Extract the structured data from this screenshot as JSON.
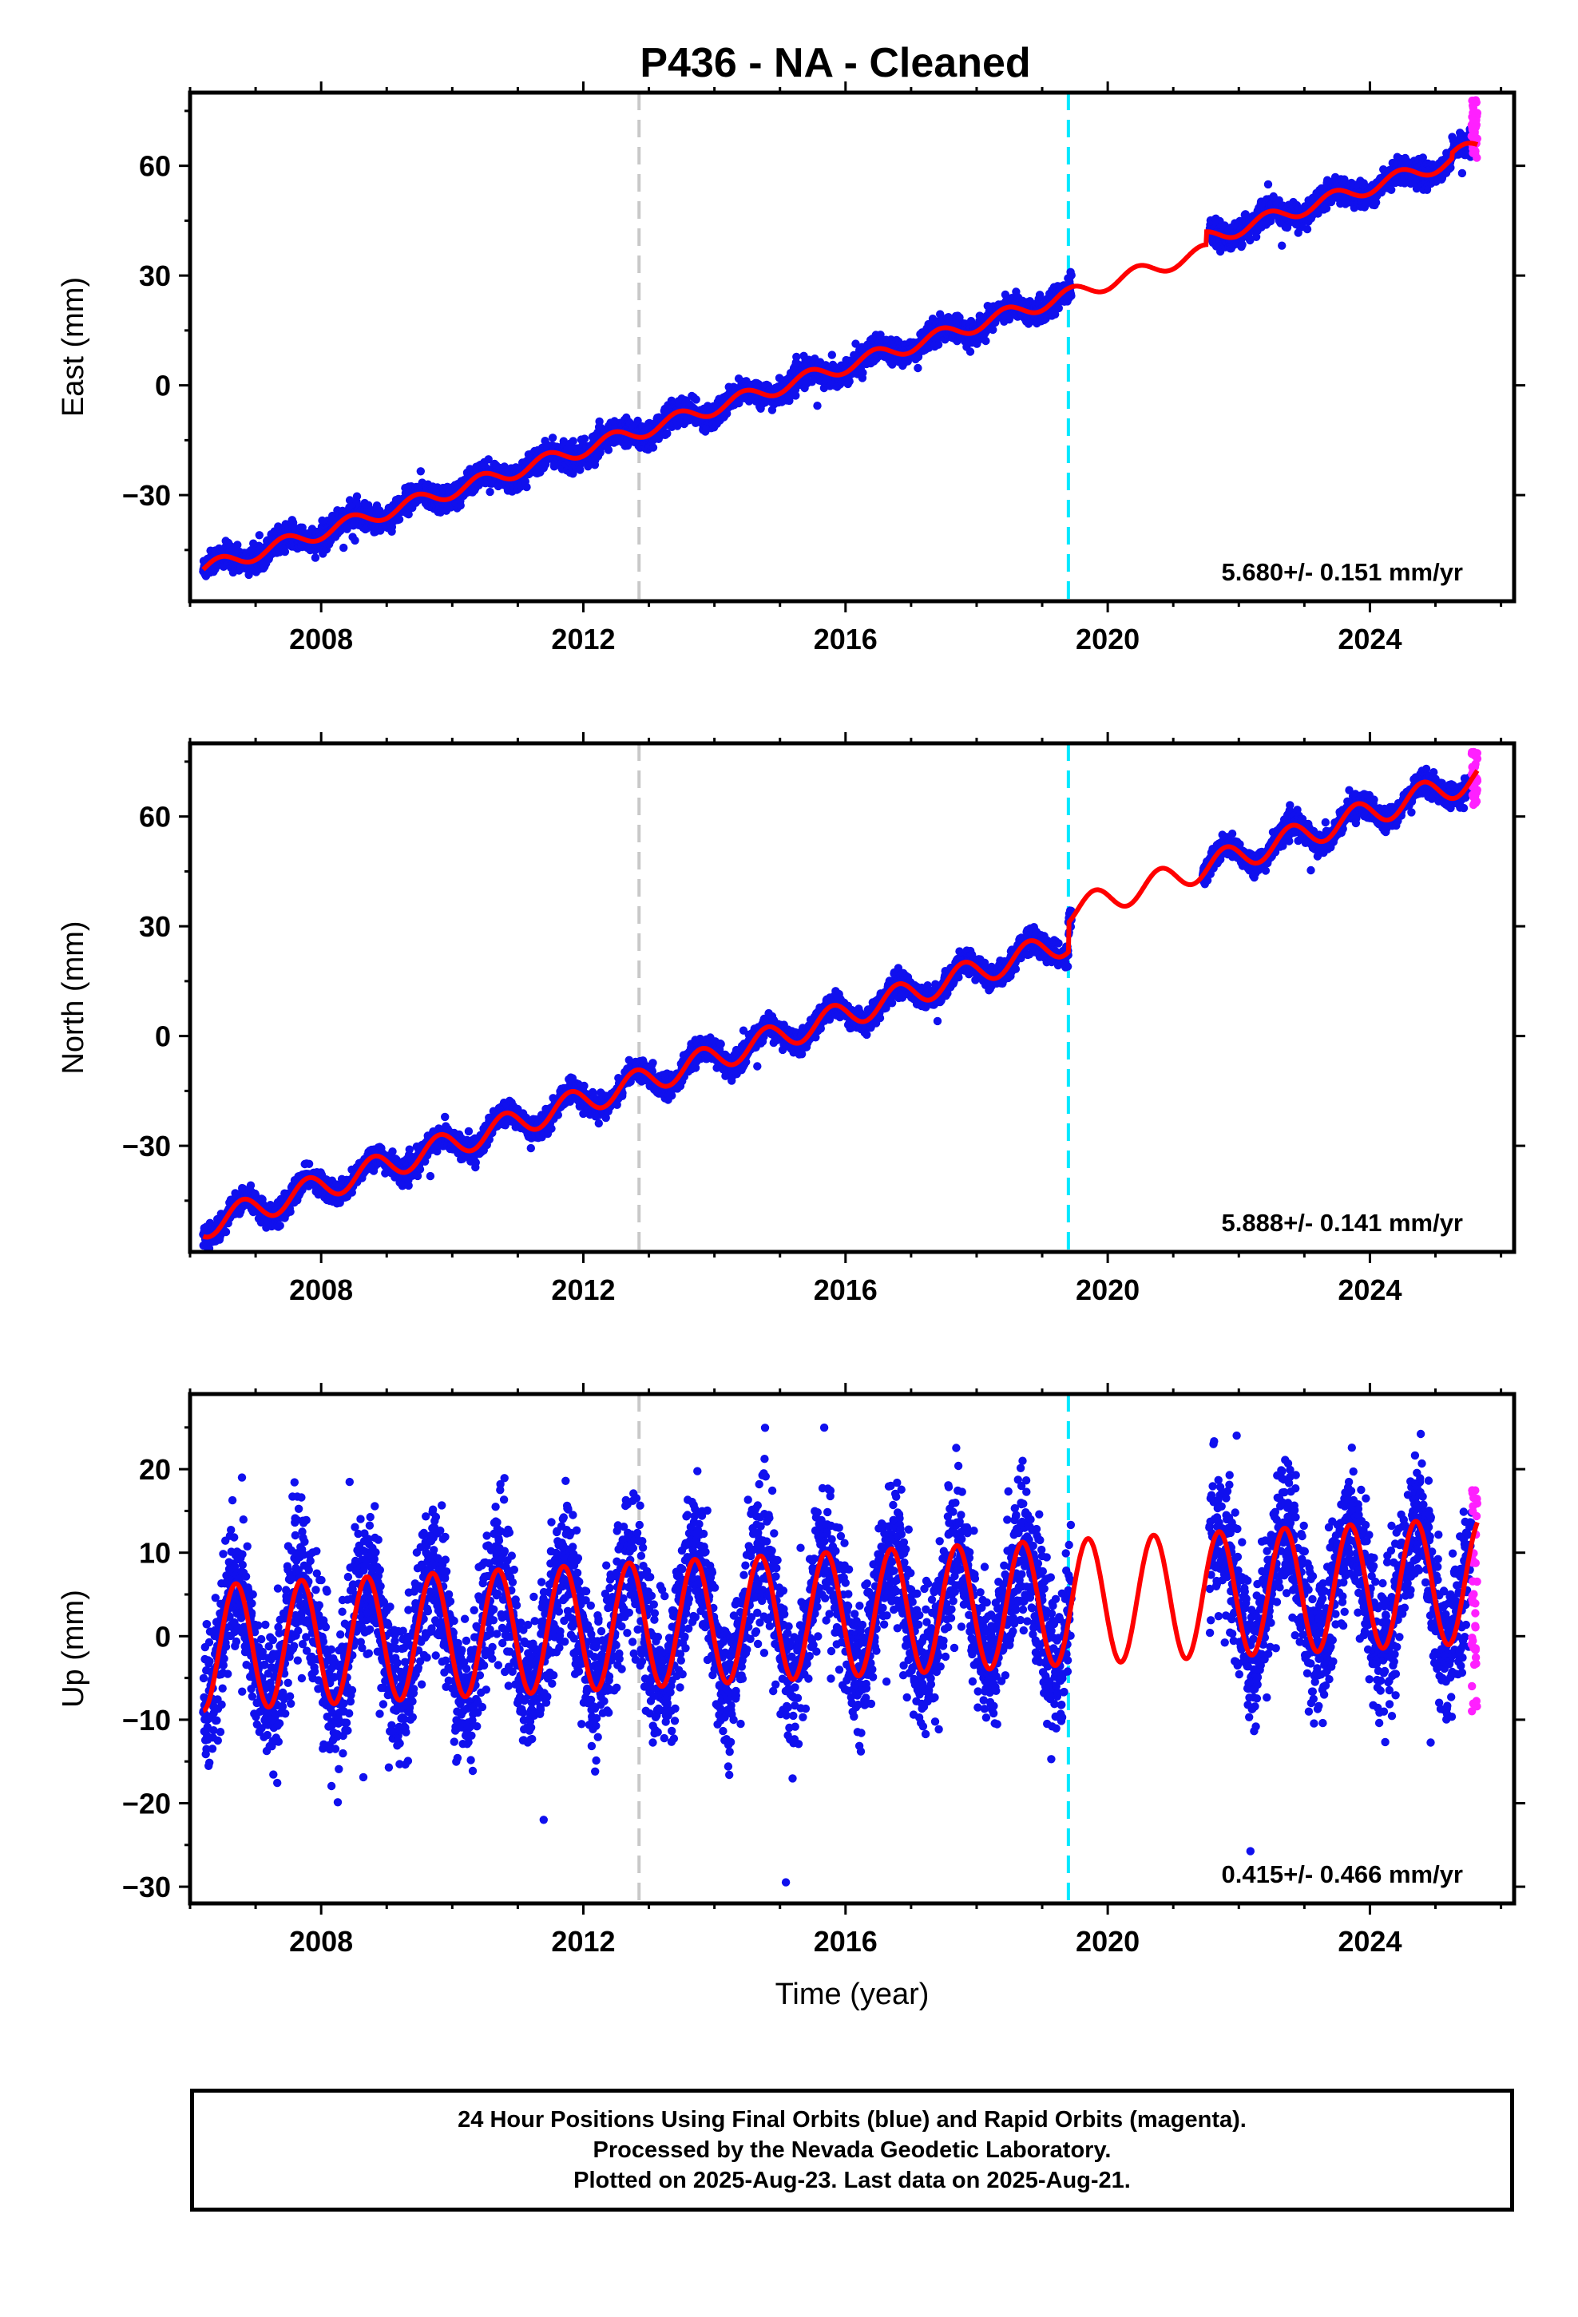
{
  "page": {
    "title": "P436  - NA - Cleaned"
  },
  "caption": {
    "line1": "24 Hour Positions Using Final Orbits (blue) and Rapid Orbits (magenta).",
    "line2": "Processed by the Nevada Geodetic Laboratory.",
    "line3": "Plotted on 2025-Aug-23. Last data on 2025-Aug-21."
  },
  "colors": {
    "final_orbits": "#1010ee",
    "rapid_orbits": "#ff20ff",
    "model_fit": "#ff0000",
    "marker_gray": "#c8c8c8",
    "marker_cyan": "#00e8ff"
  },
  "chart_data": [
    {
      "type": "scatter",
      "ylabel": "East (mm)",
      "xlabel": "",
      "rate_text": "5.680+/- 0.151 mm/yr",
      "xlim": [
        2006.0,
        2026.2
      ],
      "ylim": [
        -59,
        80
      ],
      "x_ticks": [
        2008,
        2012,
        2016,
        2020,
        2024
      ],
      "y_ticks": [
        -30,
        0,
        30,
        60
      ],
      "vertical_lines": [
        {
          "x": 2012.85,
          "style": "gray-dashed"
        },
        {
          "x": 2019.4,
          "style": "cyan-dashed"
        }
      ],
      "model": {
        "intercept_2006": -51.5,
        "rate": 5.68,
        "annual_amp": 2.0,
        "annual_phase_yr": 0.2,
        "offsets": [
          {
            "x": 2021.5,
            "dy": 3.5
          },
          {
            "x": 2025.25,
            "dy": 1.5
          }
        ]
      },
      "final_range": [
        2006.2,
        2019.45
      ],
      "final_range_2": [
        2021.55,
        2025.55
      ],
      "rapid_range": [
        2025.55,
        2025.64
      ],
      "rapid_y": [
        62,
        78
      ],
      "noise_mm": 1.6,
      "series": [
        {
          "label": "Final Orbits",
          "values": "daily positions"
        },
        {
          "label": "Rapid Orbits",
          "values": "daily positions"
        },
        {
          "label": "Model fit",
          "values": "linear trend + seasonal"
        }
      ]
    },
    {
      "type": "scatter",
      "ylabel": "North (mm)",
      "xlabel": "",
      "rate_text": "5.888+/- 0.141 mm/yr",
      "xlim": [
        2006.0,
        2026.2
      ],
      "ylim": [
        -59,
        80
      ],
      "x_ticks": [
        2008,
        2012,
        2016,
        2020,
        2024
      ],
      "y_ticks": [
        -30,
        0,
        30,
        60
      ],
      "vertical_lines": [
        {
          "x": 2012.85,
          "style": "gray-dashed"
        },
        {
          "x": 2019.4,
          "style": "cyan-dashed"
        }
      ],
      "model": {
        "intercept_2006": -53.0,
        "rate": 5.888,
        "annual_amp": 3.6,
        "annual_phase_yr": 0.55,
        "offsets": [
          {
            "x": 2019.4,
            "dy": 8.0
          }
        ]
      },
      "final_range": [
        2006.2,
        2019.45
      ],
      "final_range_2": [
        2021.45,
        2025.55
      ],
      "rapid_range": [
        2025.55,
        2025.64
      ],
      "rapid_y": [
        63,
        78
      ],
      "noise_mm": 1.5,
      "series": [
        {
          "label": "Final Orbits",
          "values": "daily positions"
        },
        {
          "label": "Rapid Orbits",
          "values": "daily positions"
        },
        {
          "label": "Model fit",
          "values": "linear trend + seasonal"
        }
      ]
    },
    {
      "type": "scatter",
      "ylabel": "Up (mm)",
      "xlabel": "Time (year)",
      "rate_text": "0.415+/- 0.466 mm/yr",
      "xlim": [
        2006.0,
        2026.2
      ],
      "ylim": [
        -32,
        29
      ],
      "x_ticks": [
        2008,
        2012,
        2016,
        2020,
        2024
      ],
      "y_ticks": [
        -30,
        -20,
        -10,
        0,
        10,
        20
      ],
      "vertical_lines": [
        {
          "x": 2012.85,
          "style": "gray-dashed"
        },
        {
          "x": 2019.4,
          "style": "cyan-dashed"
        }
      ],
      "model": {
        "intercept_2006": -1.5,
        "rate": 0.415,
        "annual_amp": 7.5,
        "annual_phase_yr": 0.45,
        "offsets": []
      },
      "final_range": [
        2006.2,
        2019.45
      ],
      "final_range_2": [
        2021.55,
        2025.55
      ],
      "rapid_range": [
        2025.55,
        2025.64
      ],
      "rapid_y": [
        -9,
        18
      ],
      "noise_mm": 4.2,
      "series": [
        {
          "label": "Final Orbits",
          "values": "daily positions"
        },
        {
          "label": "Rapid Orbits",
          "values": "daily positions"
        },
        {
          "label": "Model fit",
          "values": "linear trend + seasonal"
        }
      ]
    }
  ]
}
